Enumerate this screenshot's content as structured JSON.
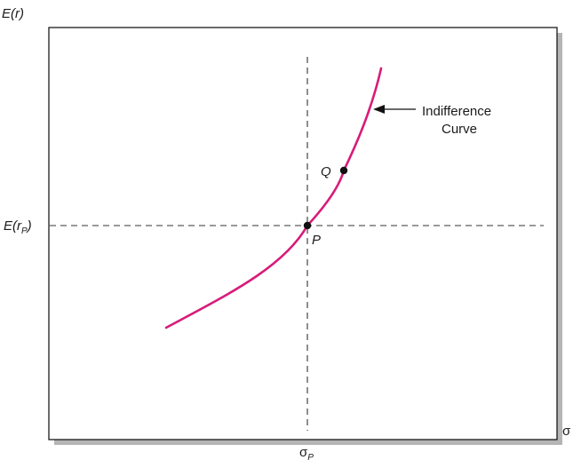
{
  "chart_data": {
    "type": "line",
    "title": "",
    "xlabel": "σ",
    "ylabel": "E(r)",
    "x_reference": {
      "label": "σ",
      "subscript": "P"
    },
    "y_reference": {
      "label": "E(r",
      "subscript": "P",
      "suffix": ")"
    },
    "points": [
      {
        "name": "P",
        "label": "P"
      },
      {
        "name": "Q",
        "label": "Q"
      }
    ],
    "series": [
      {
        "name": "Indifference Curve",
        "color": "#d81b7a"
      }
    ],
    "annotation": {
      "line1": "Indifference",
      "line2": "Curve",
      "icon": "arrow-left-icon"
    },
    "grid": false,
    "colors": {
      "curve": "#d81b7a",
      "axes": "#1a1a1a",
      "frame_shadow": "#b5b5b5",
      "dashes": "#333333"
    }
  }
}
